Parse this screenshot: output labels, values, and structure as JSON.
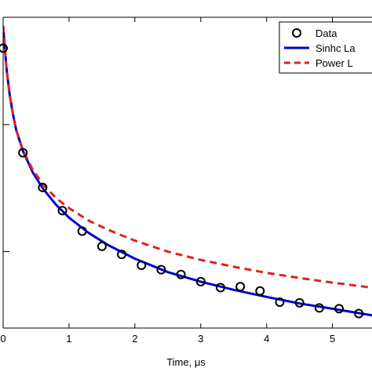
{
  "chart_data": {
    "type": "line",
    "xlabel": "Time, μs",
    "ylabel": "",
    "xlim": [
      0,
      5.6
    ],
    "x_ticks": [
      0,
      1,
      2,
      3,
      4,
      5
    ],
    "x_tick_labels": [
      "0",
      "1",
      "2",
      "3",
      "4",
      "5"
    ],
    "y_scale": "log",
    "grid": false,
    "legend_position": "top-right",
    "series": [
      {
        "name": "Data",
        "style": "markers",
        "marker": "open-circle",
        "color": "#000000",
        "x": [
          0.0,
          0.3,
          0.6,
          0.9,
          1.2,
          1.5,
          1.8,
          2.1,
          2.4,
          2.7,
          3.0,
          3.3,
          3.6,
          3.9,
          4.2,
          4.5,
          4.8,
          5.1,
          5.4
        ],
        "y": [
          40.0,
          6.0,
          3.2,
          2.1,
          1.45,
          1.1,
          0.95,
          0.78,
          0.72,
          0.66,
          0.58,
          0.52,
          0.53,
          0.49,
          0.4,
          0.395,
          0.36,
          0.355,
          0.325
        ]
      },
      {
        "name": "Sinhc La",
        "style": "line",
        "dash": "solid",
        "color": "#0000cc",
        "x": [
          0.0,
          0.05,
          0.1,
          0.15,
          0.2,
          0.3,
          0.45,
          0.6,
          0.8,
          1.0,
          1.3,
          1.6,
          2.0,
          2.5,
          3.0,
          3.5,
          4.0,
          4.5,
          5.0,
          5.6
        ],
        "y": [
          60.0,
          28.0,
          17.0,
          12.0,
          9.0,
          6.2,
          4.2,
          3.15,
          2.35,
          1.85,
          1.4,
          1.12,
          0.88,
          0.69,
          0.58,
          0.5,
          0.44,
          0.39,
          0.355,
          0.315
        ]
      },
      {
        "name": "Power L",
        "style": "line",
        "dash": "dashed",
        "color": "#dd2222",
        "x": [
          0.0,
          0.05,
          0.1,
          0.15,
          0.2,
          0.3,
          0.45,
          0.6,
          0.8,
          1.0,
          1.3,
          1.6,
          2.0,
          2.5,
          3.0,
          3.5,
          4.0,
          4.5,
          5.0,
          5.6
        ],
        "y": [
          60.0,
          28.0,
          17.0,
          12.0,
          9.0,
          6.3,
          4.4,
          3.4,
          2.65,
          2.2,
          1.75,
          1.48,
          1.22,
          1.0,
          0.86,
          0.76,
          0.68,
          0.62,
          0.57,
          0.52
        ]
      }
    ]
  },
  "colors": {
    "axes": "#000000",
    "background": "#ffffff",
    "legend_border": "#000000"
  }
}
